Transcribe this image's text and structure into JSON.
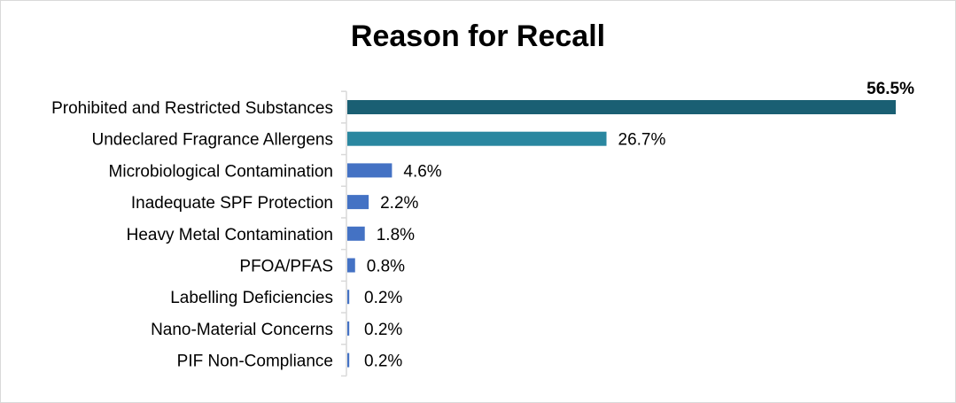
{
  "chart_data": {
    "type": "bar",
    "orientation": "horizontal",
    "title": "Reason for Recall",
    "xlabel": "",
    "ylabel": "",
    "grid": false,
    "legend": "none",
    "xlim": [
      0,
      56.5
    ],
    "categories": [
      "Prohibited and Restricted Substances",
      "Undeclared Fragrance Allergens",
      "Microbiological Contamination",
      "Inadequate SPF Protection",
      "Heavy Metal Contamination",
      "PFOA/PFAS",
      "Labelling Deficiencies",
      "Nano-Material Concerns",
      "PIF Non-Compliance"
    ],
    "values": [
      56.5,
      26.7,
      4.6,
      2.2,
      1.8,
      0.8,
      0.2,
      0.2,
      0.2
    ],
    "value_labels": [
      "56.5%",
      "26.7%",
      "4.6%",
      "2.2%",
      "1.8%",
      "0.8%",
      "0.2%",
      "0.2%",
      "0.2%"
    ],
    "colors": [
      "#1a5f73",
      "#2a87a0",
      "#4472c4",
      "#4472c4",
      "#4472c4",
      "#4472c4",
      "#4472c4",
      "#4472c4",
      "#4472c4"
    ],
    "axis_color": "#d9d9d9"
  }
}
